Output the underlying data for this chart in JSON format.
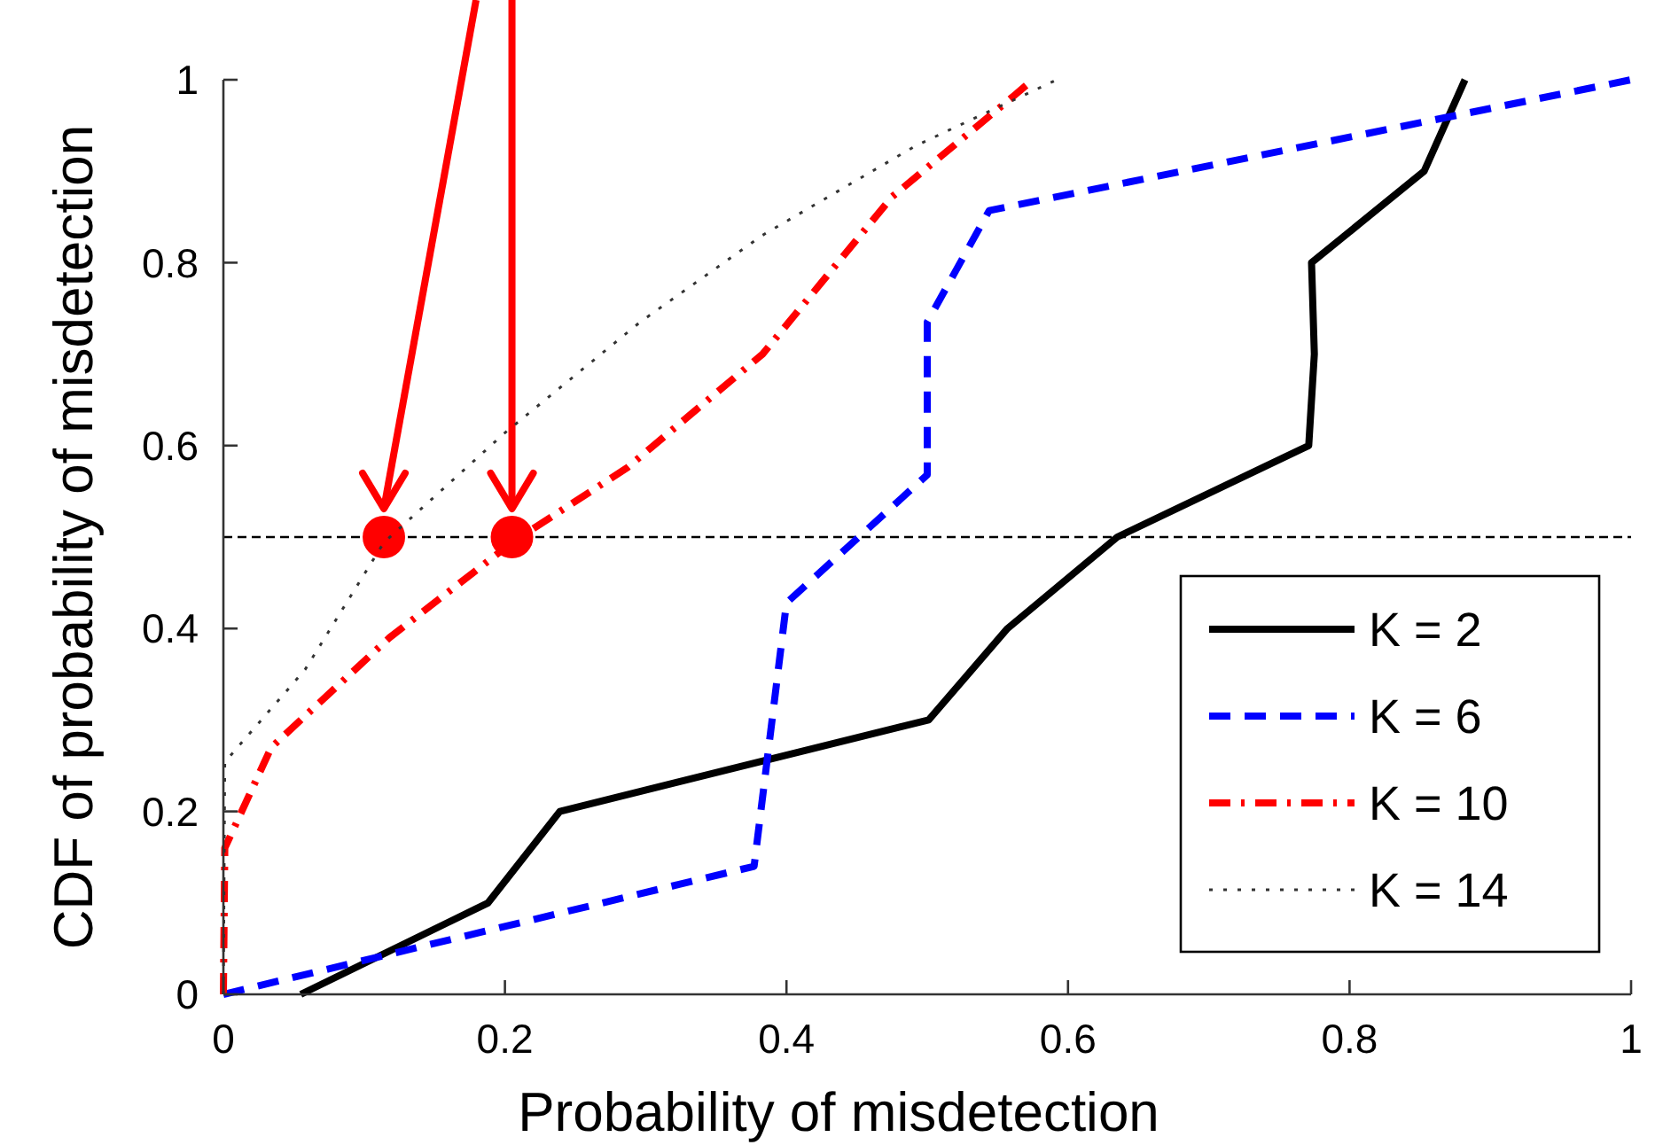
{
  "chart_data": {
    "type": "line",
    "xlabel": "Probability of misdetection",
    "ylabel": "CDF of probability of misdetection",
    "xlim": [
      0,
      1
    ],
    "ylim": [
      0,
      1
    ],
    "xticks": [
      0,
      0.2,
      0.4,
      0.6,
      0.8,
      1
    ],
    "yticks": [
      0,
      0.2,
      0.4,
      0.6,
      0.8,
      1
    ],
    "grid": false,
    "legend": "bottom right",
    "marker": "none",
    "ref_lines": [
      {
        "axis": "y",
        "value": 0.5,
        "color": "#000000",
        "line_style": "dashed"
      }
    ],
    "series": [
      {
        "name": "K = 2",
        "color": "#000000",
        "line_style": "solid",
        "x": [
          0.055,
          0.188,
          0.239,
          0.501,
          0.557,
          0.635,
          0.771,
          0.775,
          0.773,
          0.853,
          0.882
        ],
        "values": [
          0,
          0.1,
          0.2,
          0.3,
          0.4,
          0.5,
          0.6,
          0.7,
          0.8,
          0.9,
          1
        ]
      },
      {
        "name": "K = 6",
        "color": "#0000ff",
        "line_style": "dashed",
        "x": [
          0,
          0.377,
          0.4,
          0.5,
          0.5,
          0.544,
          1
        ],
        "values": [
          0,
          0.14,
          0.428,
          0.568,
          0.735,
          0.857,
          1
        ]
      },
      {
        "name": "K = 10",
        "color": "#ff0000",
        "line_style": "dashdot",
        "x": [
          0,
          0.001,
          0.034,
          0.118,
          0.205,
          0.287,
          0.383,
          0.475,
          0.562,
          0.575
        ],
        "values": [
          0,
          0.16,
          0.27,
          0.39,
          0.494,
          0.576,
          0.7,
          0.872,
          0.983,
          1
        ]
      },
      {
        "name": "K = 14",
        "color": "#333333",
        "line_style": "dotted",
        "x": [
          0,
          0.001,
          0.058,
          0.114,
          0.2,
          0.296,
          0.383,
          0.492,
          0.592
        ],
        "values": [
          0,
          0.254,
          0.355,
          0.494,
          0.614,
          0.735,
          0.83,
          0.928,
          1
        ]
      },
      {
        "type": "scatter",
        "color": "#ff0000",
        "marker": "circle",
        "x": [
          0.114,
          0.205
        ],
        "values": [
          0.5,
          0.5
        ]
      }
    ]
  }
}
